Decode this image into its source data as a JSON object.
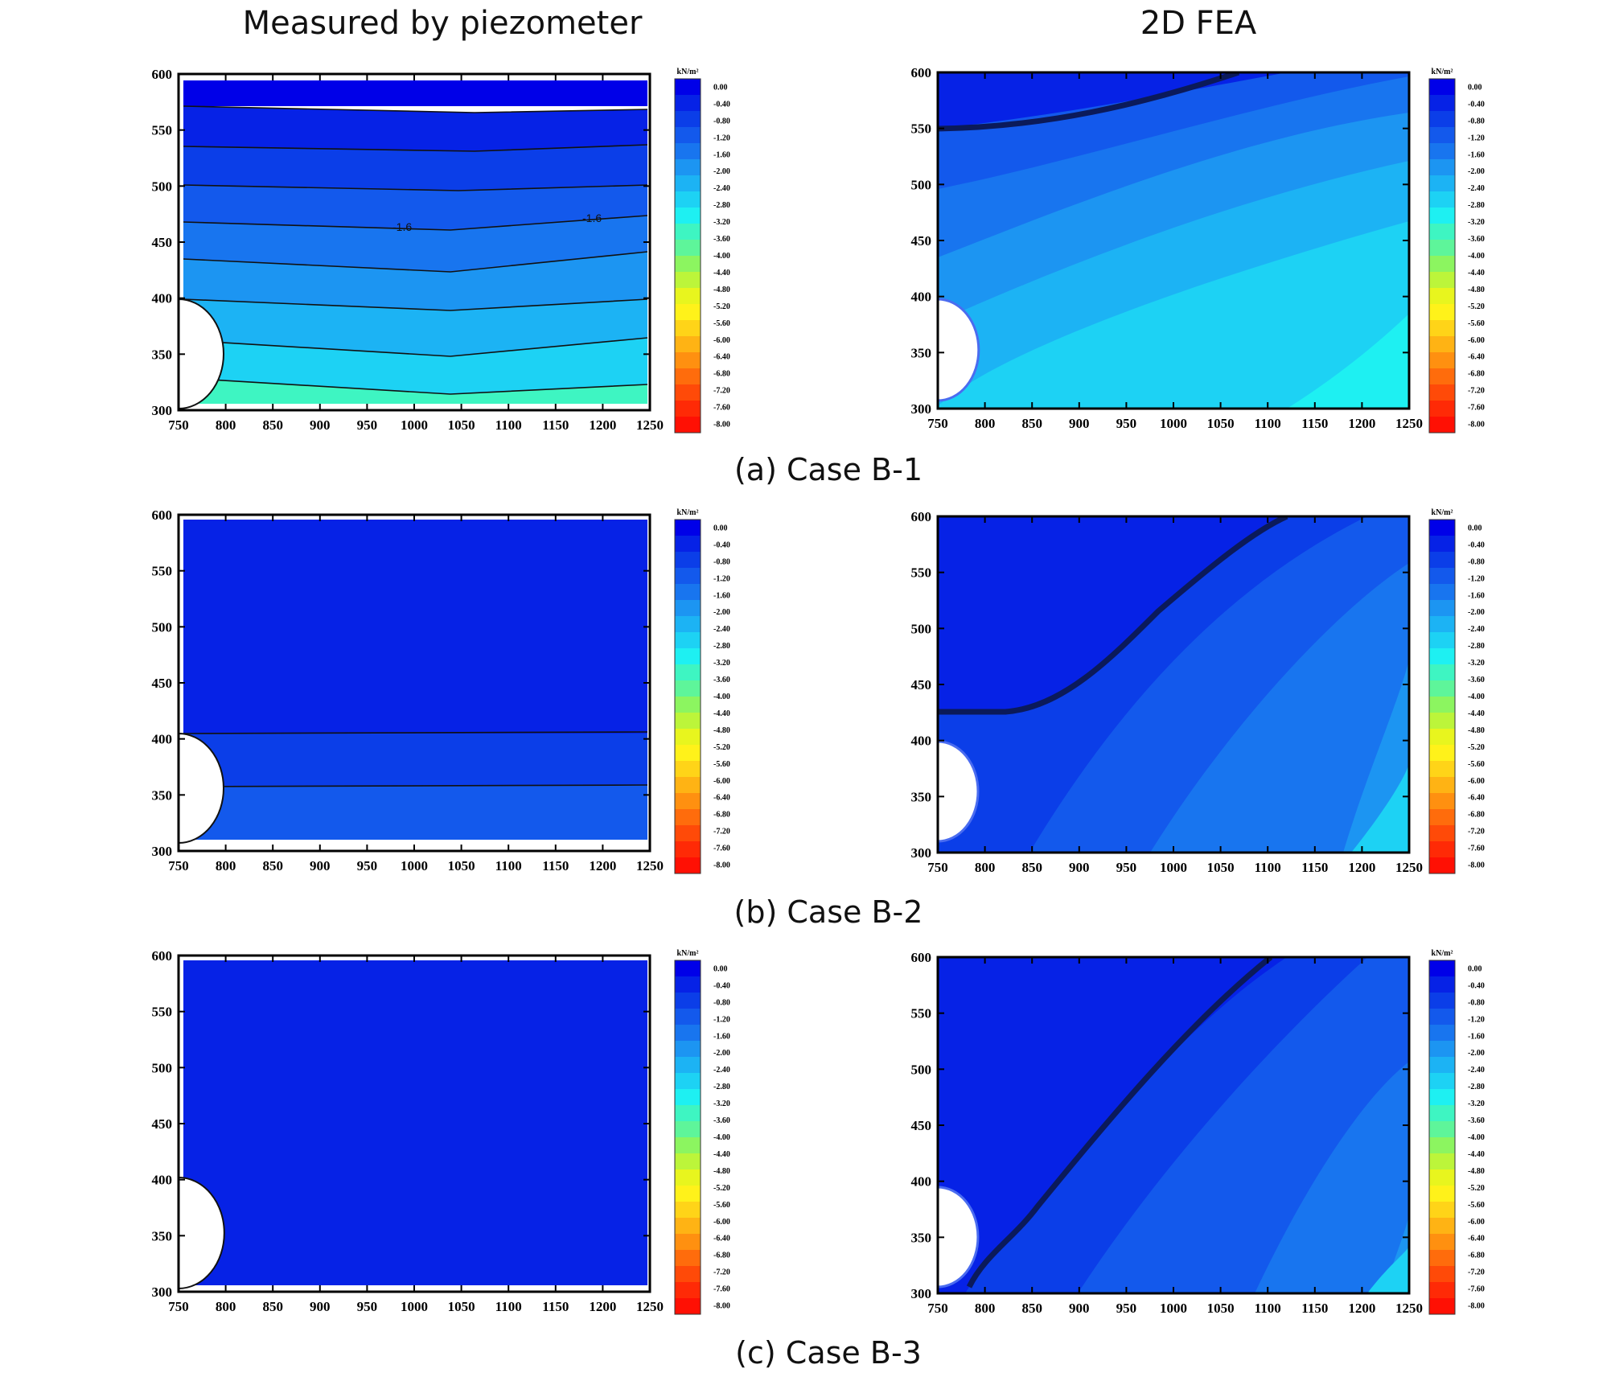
{
  "columns": {
    "left_title": "Measured by piezometer",
    "right_title": "2D FEA"
  },
  "captions": [
    "(a) Case B-1",
    "(b) Case B-2",
    "(c) Case B-3"
  ],
  "colors": {
    "scale": [
      "#0000e8",
      "#0622e6",
      "#0b3ee8",
      "#1359ec",
      "#1875ef",
      "#1c95f2",
      "#1cb3f4",
      "#1dd2f4",
      "#1ef0f2",
      "#3ef5c2",
      "#5ef59a",
      "#8cf560",
      "#bcf53a",
      "#e8f51e",
      "#fff21a",
      "#ffd418",
      "#ffb314",
      "#ff9010",
      "#ff6c0c",
      "#ff4a08",
      "#ff2a06",
      "#ff1004"
    ],
    "axis": "#000000"
  },
  "chart_data": [
    {
      "id": "a-left",
      "panel": "Case B-1",
      "source": "Measured by piezometer",
      "type": "heatmap",
      "xlim": [
        750,
        1250
      ],
      "ylim": [
        300,
        600
      ],
      "xticks": [
        "750",
        "800",
        "850",
        "900",
        "950",
        "1000",
        "1050",
        "1100",
        "1150",
        "1200",
        "1250"
      ],
      "yticks": [
        "300",
        "350",
        "400",
        "450",
        "500",
        "550",
        "600"
      ],
      "colorbar": {
        "unit": "kN/m²",
        "labels": [
          "0.00",
          "-0.40",
          "-0.80",
          "-1.20",
          "-1.60",
          "-2.00",
          "-2.40",
          "-2.80",
          "-3.20",
          "-3.60",
          "-4.00",
          "-4.40",
          "-4.80",
          "-5.20",
          "-5.60",
          "-6.00",
          "-6.40",
          "-6.80",
          "-7.20",
          "-7.60",
          "-8.00"
        ]
      },
      "contour_labels": [
        "-1.6",
        "-1.6"
      ]
    },
    {
      "id": "a-right",
      "panel": "Case B-1",
      "source": "2D FEA",
      "type": "heatmap",
      "xlim": [
        750,
        1250
      ],
      "ylim": [
        300,
        600
      ],
      "xticks": [
        "750",
        "800",
        "850",
        "900",
        "950",
        "1000",
        "1050",
        "1100",
        "1150",
        "1200",
        "1250"
      ],
      "yticks": [
        "300",
        "350",
        "400",
        "450",
        "500",
        "550",
        "600"
      ],
      "colorbar": {
        "unit": "kN/m²",
        "labels": [
          "0.00",
          "-0.40",
          "-0.80",
          "-1.20",
          "-1.60",
          "-2.00",
          "-2.40",
          "-2.80",
          "-3.20",
          "-3.60",
          "-4.00",
          "-4.40",
          "-4.80",
          "-5.20",
          "-5.60",
          "-6.00",
          "-6.40",
          "-6.80",
          "-7.20",
          "-7.60",
          "-8.00"
        ]
      }
    },
    {
      "id": "b-left",
      "panel": "Case B-2",
      "source": "Measured by piezometer",
      "type": "heatmap",
      "xlim": [
        750,
        1250
      ],
      "ylim": [
        300,
        600
      ],
      "xticks": [
        "750",
        "800",
        "850",
        "900",
        "950",
        "1000",
        "1050",
        "1100",
        "1150",
        "1200",
        "1250"
      ],
      "yticks": [
        "300",
        "350",
        "400",
        "450",
        "500",
        "550",
        "600"
      ],
      "colorbar": {
        "unit": "kN/m²",
        "labels": [
          "0.00",
          "-0.40",
          "-0.80",
          "-1.20",
          "-1.60",
          "-2.00",
          "-2.40",
          "-2.80",
          "-3.20",
          "-3.60",
          "-4.00",
          "-4.40",
          "-4.80",
          "-5.20",
          "-5.60",
          "-6.00",
          "-6.40",
          "-6.80",
          "-7.20",
          "-7.60",
          "-8.00"
        ]
      }
    },
    {
      "id": "b-right",
      "panel": "Case B-2",
      "source": "2D FEA",
      "type": "heatmap",
      "xlim": [
        750,
        1250
      ],
      "ylim": [
        300,
        600
      ],
      "xticks": [
        "750",
        "800",
        "850",
        "900",
        "950",
        "1000",
        "1050",
        "1100",
        "1150",
        "1200",
        "1250"
      ],
      "yticks": [
        "300",
        "350",
        "400",
        "450",
        "500",
        "550",
        "600"
      ],
      "colorbar": {
        "unit": "kN/m²",
        "labels": [
          "0.00",
          "-0.40",
          "-0.80",
          "-1.20",
          "-1.60",
          "-2.00",
          "-2.40",
          "-2.80",
          "-3.20",
          "-3.60",
          "-4.00",
          "-4.40",
          "-4.80",
          "-5.20",
          "-5.60",
          "-6.00",
          "-6.40",
          "-6.80",
          "-7.20",
          "-7.60",
          "-8.00"
        ]
      }
    },
    {
      "id": "c-left",
      "panel": "Case B-3",
      "source": "Measured by piezometer",
      "type": "heatmap",
      "xlim": [
        750,
        1250
      ],
      "ylim": [
        300,
        600
      ],
      "xticks": [
        "750",
        "800",
        "850",
        "900",
        "950",
        "1000",
        "1050",
        "1100",
        "1150",
        "1200",
        "1250"
      ],
      "yticks": [
        "300",
        "350",
        "400",
        "450",
        "500",
        "550",
        "600"
      ],
      "colorbar": {
        "unit": "kN/m²",
        "labels": [
          "0.00",
          "-0.40",
          "-0.80",
          "-1.20",
          "-1.60",
          "-2.00",
          "-2.40",
          "-2.80",
          "-3.20",
          "-3.60",
          "-4.00",
          "-4.40",
          "-4.80",
          "-5.20",
          "-5.60",
          "-6.00",
          "-6.40",
          "-6.80",
          "-7.20",
          "-7.60",
          "-8.00"
        ]
      }
    },
    {
      "id": "c-right",
      "panel": "Case B-3",
      "source": "2D FEA",
      "type": "heatmap",
      "xlim": [
        750,
        1250
      ],
      "ylim": [
        300,
        600
      ],
      "xticks": [
        "750",
        "800",
        "850",
        "900",
        "950",
        "1000",
        "1050",
        "1100",
        "1150",
        "1200",
        "1250"
      ],
      "yticks": [
        "300",
        "350",
        "400",
        "450",
        "500",
        "550",
        "600"
      ],
      "colorbar": {
        "unit": "kN/m²",
        "labels": [
          "0.00",
          "-0.40",
          "-0.80",
          "-1.20",
          "-1.60",
          "-2.00",
          "-2.40",
          "-2.80",
          "-3.20",
          "-3.60",
          "-4.00",
          "-4.40",
          "-4.80",
          "-5.20",
          "-5.60",
          "-6.00",
          "-6.40",
          "-6.80",
          "-7.20",
          "-7.60",
          "-8.00"
        ]
      }
    }
  ]
}
